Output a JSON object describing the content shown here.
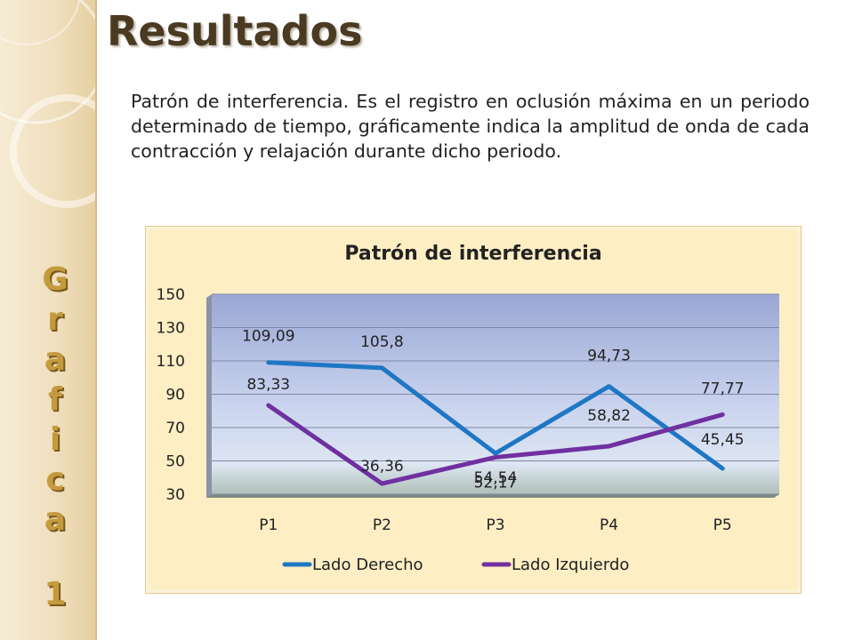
{
  "page": {
    "title": "Resultados",
    "description": "Patrón de interferencia. Es el registro en oclusión máxima en un periodo determinado de tiempo, gráficamente indica la amplitud de onda de cada contracción y relajación durante dicho periodo.",
    "side_label": "Grafica",
    "side_number": "1"
  },
  "colors": {
    "accent_gold": "#c49a3c",
    "series_right": "#1f77c4",
    "series_left": "#7030a0",
    "panel_bg": "#fdeec4"
  },
  "chart_data": {
    "type": "line",
    "title": "Patrón de interferencia",
    "categories": [
      "P1",
      "P2",
      "P3",
      "P4",
      "P5"
    ],
    "series": [
      {
        "name": "Lado Derecho",
        "values": [
          109.09,
          105.8,
          54.54,
          94.73,
          45.45
        ],
        "labels": [
          "109,09",
          "105,8",
          "54,54",
          "94,73",
          "45,45"
        ],
        "color": "#1f77c4"
      },
      {
        "name": "Lado Izquierdo",
        "values": [
          83.33,
          36.36,
          52.17,
          58.82,
          77.77
        ],
        "labels": [
          "83,33",
          "36,36",
          "52,17",
          "58,82",
          "77,77"
        ],
        "color": "#7030a0"
      }
    ],
    "ylim": [
      30,
      150
    ],
    "yticks": [
      30,
      50,
      70,
      90,
      110,
      130,
      150
    ],
    "grid": true,
    "legend": "bottom"
  }
}
